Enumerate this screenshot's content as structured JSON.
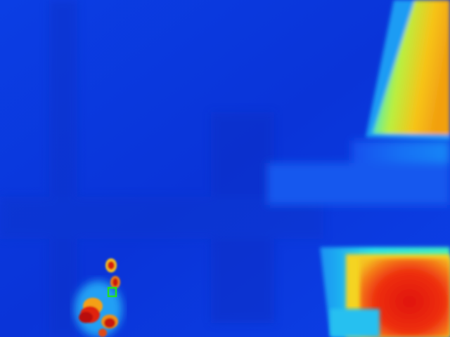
{
  "palette": {
    "background_cold": "#0a3ae0",
    "cool": "#1466f0",
    "mid_cyan": "#22d8f0",
    "warm_yellow": "#f4e020",
    "hot_red": "#e81a10",
    "marker_green": "#22e020"
  },
  "image": {
    "kind": "thermal-camera-frame",
    "colormap": "jet"
  }
}
